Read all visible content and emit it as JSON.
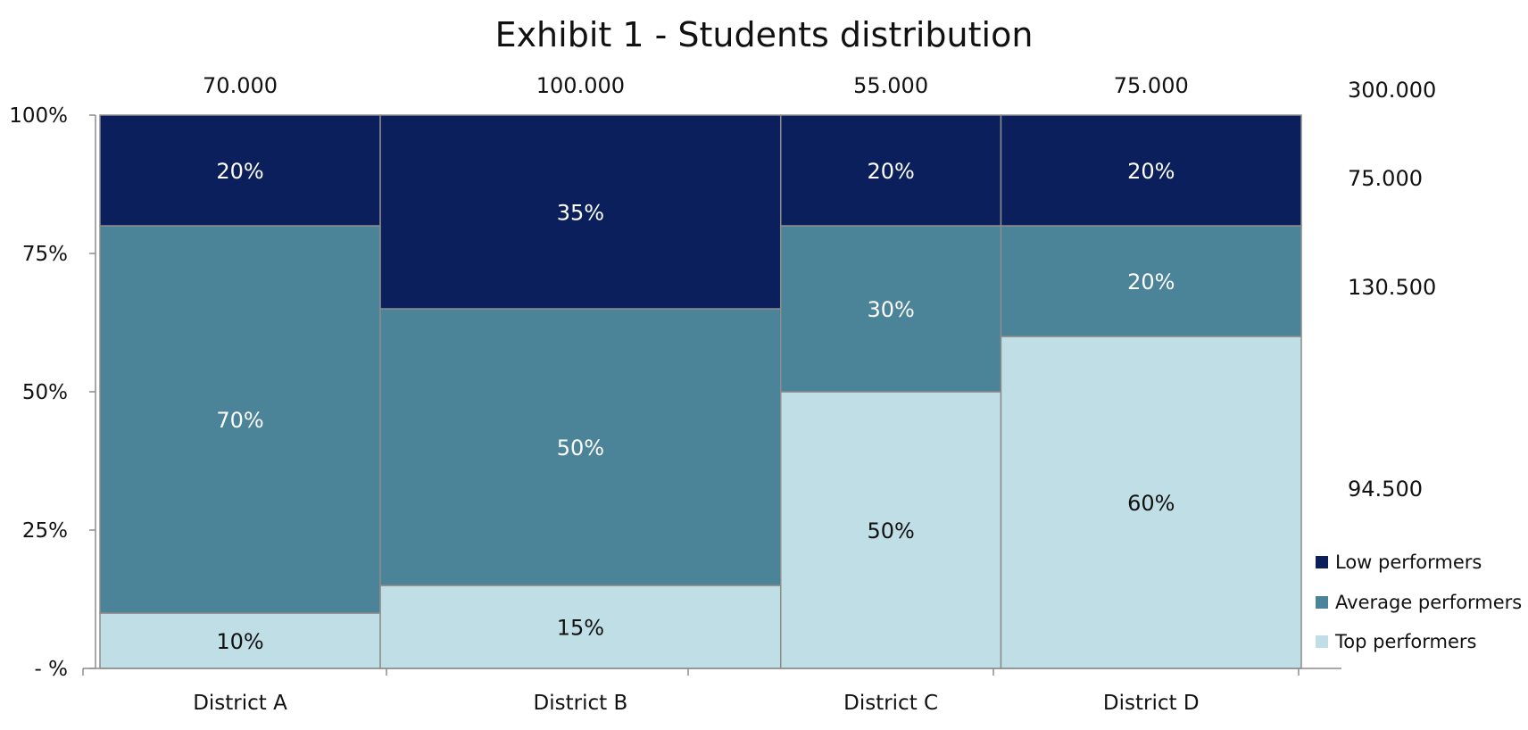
{
  "chart_data": {
    "type": "bar",
    "subtype": "marimekko (variable-width 100% stacked bar)",
    "title": "Exhibit 1 - Students distribution",
    "xlabel": "",
    "ylabel": "",
    "ylim": [
      0,
      100
    ],
    "y_ticks": [
      "- %",
      "25%",
      "50%",
      "75%",
      "100%"
    ],
    "y_tick_values": [
      0,
      25,
      50,
      75,
      100
    ],
    "grid": false,
    "legend_position": "bottom-right",
    "categories": [
      "District A",
      "District B",
      "District C",
      "District D"
    ],
    "column_totals": [
      70000,
      100000,
      55000,
      75000
    ],
    "column_total_labels": [
      "70.000",
      "100.000",
      "55.000",
      "75.000"
    ],
    "series": [
      {
        "name": "Top performers",
        "color": "#C0DEE6",
        "label_color": "#111111",
        "values": [
          10,
          15,
          50,
          60
        ],
        "labels": [
          "10%",
          "15%",
          "50%",
          "60%"
        ]
      },
      {
        "name": "Average performers",
        "color": "#4B8398",
        "label_color": "#ffffff",
        "values": [
          70,
          50,
          30,
          20
        ],
        "labels": [
          "70%",
          "50%",
          "30%",
          "20%"
        ]
      },
      {
        "name": "Low performers",
        "color": "#0B1F5C",
        "label_color": "#ffffff",
        "values": [
          20,
          35,
          20,
          20
        ],
        "labels": [
          "20%",
          "35%",
          "20%",
          "20%"
        ]
      }
    ],
    "legend_order": [
      "Low performers",
      "Average performers",
      "Top performers"
    ],
    "right_annotations": {
      "grand_total": "300.000",
      "Low performers": "75.000",
      "Average performers": "130.500",
      "Top performers": "94.500"
    }
  }
}
